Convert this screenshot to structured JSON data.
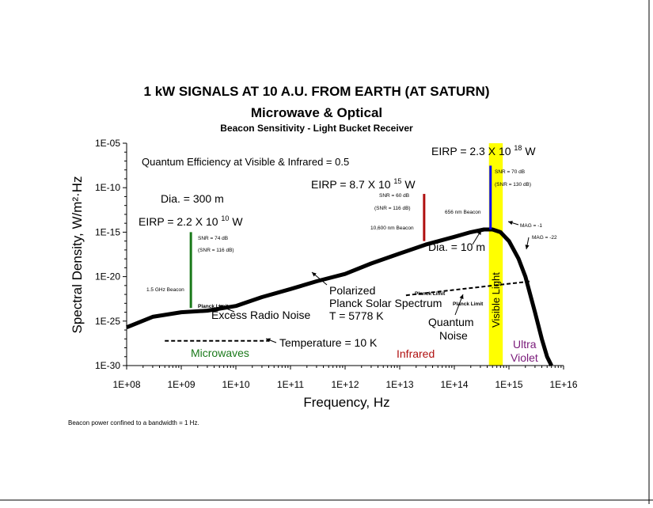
{
  "chart_data": {
    "type": "line",
    "title": "1 kW SIGNALS AT 10 A.U. FROM EARTH (AT SATURN)",
    "subtitle": "Microwave & Optical",
    "subsubtitle": "Beacon Sensitivity - Light Bucket Receiver",
    "xlabel": "Frequency, Hz",
    "ylabel": "Spectral Density, W/m²·Hz",
    "x_scale": "log",
    "y_scale": "log",
    "xlim": [
      100000000.0,
      1e+16
    ],
    "ylim": [
      1e-30,
      1e-05
    ],
    "x_tick_labels": [
      "1E+08",
      "1E+09",
      "1E+10",
      "1E+11",
      "1E+12",
      "1E+13",
      "1E+14",
      "1E+15",
      "1E+16"
    ],
    "y_tick_labels": [
      "1E-05",
      "1E-10",
      "1E-15",
      "1E-20",
      "1E-25",
      "1E-30"
    ],
    "grid": false,
    "series": [
      {
        "name": "Planck Solar Spectrum",
        "color": "#000000",
        "style": "solid-thick",
        "x": [
          100000000.0,
          300000000.0,
          1000000000.0,
          3000000000.0,
          10000000000.0,
          30000000000.0,
          100000000000.0,
          300000000000.0,
          1000000000000.0,
          3000000000000.0,
          10000000000000.0,
          30000000000000.0,
          100000000000000.0,
          200000000000000.0,
          350000000000000.0,
          500000000000000.0,
          700000000000000.0,
          1000000000000000.0,
          1500000000000000.0,
          2000000000000000.0,
          3000000000000000.0,
          4000000000000000.0,
          5000000000000000.0,
          6000000000000000.0
        ],
        "y": [
          2e-26,
          3e-25,
          1e-24,
          1.5e-24,
          5e-24,
          5e-23,
          4e-22,
          3e-21,
          2e-20,
          3e-19,
          4e-18,
          4e-17,
          3e-16,
          1e-15,
          2e-15,
          2e-15,
          1e-15,
          1e-16,
          1e-18,
          1e-20,
          1e-24,
          1e-27,
          1e-29,
          1e-30
        ]
      },
      {
        "name": "Temperature = 10 K",
        "color": "#000000",
        "style": "dashed",
        "x": [
          500000000.0,
          40000000000.0
        ],
        "y": [
          6e-28,
          6e-28
        ]
      },
      {
        "name": "Quantum Noise",
        "color": "#000000",
        "style": "dashed",
        "x": [
          13000000000000.0,
          2500000000000000.0
        ],
        "y": [
          8e-23,
          3e-21
        ]
      }
    ],
    "beacons": [
      {
        "label": "1.5 GHz Beacon",
        "freq": 1500000000.0,
        "ymin": 3e-24,
        "ymax": 1e-15,
        "color": "#1a7a1a",
        "snr": "SNR = 74 dB",
        "snr2": "(SNR = 116 dB)"
      },
      {
        "label": "10,600 nm Beacon",
        "freq": 28000000000000.0,
        "ymin": 1e-16,
        "ymax": 2e-11,
        "color": "#b01010",
        "snr": "SNR = 60 dB",
        "snr2": "(SNR = 116 dB)"
      },
      {
        "label": "656 nm Beacon",
        "freq": 460000000000000.0,
        "ymin": 2e-15,
        "ymax": 3e-08,
        "color": "#0000ff",
        "snr": "SNR = 70 dB",
        "snr2": "(SNR = 130 dB)"
      }
    ],
    "eirp_labels": [
      {
        "base": "EIRP = 2.2 X 10",
        "exp": "10",
        "unit": "W"
      },
      {
        "base": "EIRP = 8.7 X 10",
        "exp": "15",
        "unit": "W"
      },
      {
        "base": "EIRP = 2.3 X 10",
        "exp": "18",
        "unit": "W"
      }
    ],
    "annotations": {
      "quantum_eff": "Quantum Efficiency at Visible & Infrared = 0.5",
      "dia_300": "Dia. = 300 m",
      "dia_10": "Dia. = 10 m",
      "excess_radio": "Excess Radio Noise",
      "planck_limit": "Planck Limit",
      "polarized": "Polarized",
      "planck_solar": "Planck Solar Spectrum",
      "temp_t": "T = 5778 K",
      "temperature": "Temperature = 10 K",
      "quantum_noise_1": "Quantum",
      "quantum_noise_2": "Noise",
      "mag_1": "MAG = -1",
      "mag_22": "MAG = -22",
      "visible_light": "Visible Light",
      "ultra": "Ultra",
      "violet": "Violet",
      "microwaves": "Microwaves",
      "infrared": "Infrared",
      "footnote": "Beacon power confined to a bandwidth = 1 Hz."
    },
    "colors": {
      "visible_band": "#ffff00",
      "microwaves": "#1a7a1a",
      "infrared": "#b01010",
      "uv": "#7a1a7a"
    }
  }
}
